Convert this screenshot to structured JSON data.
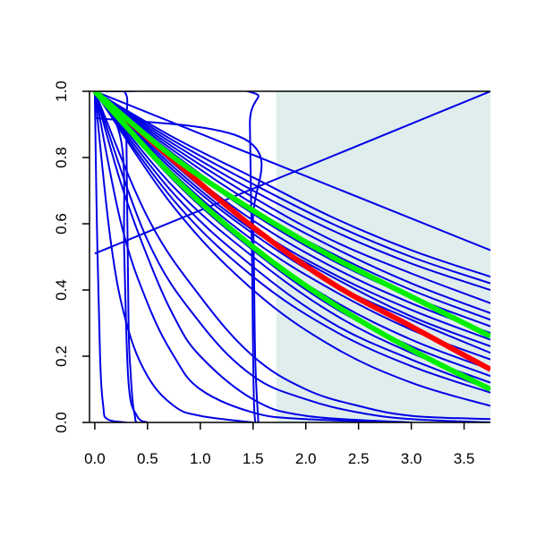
{
  "chart_data": {
    "type": "line",
    "title": "",
    "xlabel": "",
    "ylabel": "",
    "xlim": [
      -0.05,
      3.75
    ],
    "ylim": [
      0.0,
      1.0
    ],
    "x_ticks": [
      "0.0",
      "0.5",
      "1.0",
      "1.5",
      "2.0",
      "2.5",
      "3.0",
      "3.5"
    ],
    "y_ticks": [
      "0.0",
      "0.2",
      "0.4",
      "0.6",
      "0.8",
      "1.0"
    ],
    "grid": false,
    "legend": "none",
    "shaded_region": {
      "x_from": 1.72,
      "x_to": 3.75,
      "color": "#e0eded"
    },
    "colors": {
      "background_curves": "#0000e6",
      "highlight_red": "#ff0000",
      "highlight_green": "#00ee00"
    },
    "series": [
      {
        "color": "#0000e6",
        "x": [
          0,
          3.75
        ],
        "y": [
          1.0,
          0.52
        ]
      },
      {
        "color": "#0000e6",
        "x": [
          0,
          3.75
        ],
        "y": [
          0.51,
          1.0
        ]
      },
      {
        "color": "#0000e6",
        "x": [
          0,
          0.75,
          1.5,
          2.25,
          3.0,
          3.75
        ],
        "y": [
          1.0,
          0.86,
          0.74,
          0.62,
          0.52,
          0.44
        ]
      },
      {
        "color": "#0000e6",
        "x": [
          0,
          0.75,
          1.5,
          2.25,
          3.0,
          3.75
        ],
        "y": [
          1.0,
          0.85,
          0.72,
          0.6,
          0.5,
          0.42
        ]
      },
      {
        "color": "#0000e6",
        "x": [
          0,
          0.75,
          1.5,
          2.25,
          3.0,
          3.75
        ],
        "y": [
          1.0,
          0.84,
          0.7,
          0.58,
          0.48,
          0.4
        ]
      },
      {
        "color": "#0000e6",
        "x": [
          0,
          0.75,
          1.5,
          2.25,
          3.0,
          3.75
        ],
        "y": [
          1.0,
          0.83,
          0.68,
          0.55,
          0.45,
          0.36
        ]
      },
      {
        "color": "#0000e6",
        "x": [
          0,
          0.75,
          1.5,
          2.25,
          3.0,
          3.75
        ],
        "y": [
          1.0,
          0.82,
          0.66,
          0.53,
          0.42,
          0.33
        ]
      },
      {
        "color": "#0000e6",
        "x": [
          0,
          0.75,
          1.5,
          2.25,
          3.0,
          3.75
        ],
        "y": [
          1.0,
          0.81,
          0.64,
          0.51,
          0.4,
          0.31
        ]
      },
      {
        "color": "#0000e6",
        "x": [
          0,
          0.75,
          1.5,
          2.25,
          3.0,
          3.75
        ],
        "y": [
          1.0,
          0.8,
          0.63,
          0.49,
          0.38,
          0.29
        ]
      },
      {
        "color": "#0000e6",
        "x": [
          0,
          0.75,
          1.5,
          2.25,
          3.0,
          3.75
        ],
        "y": [
          1.0,
          0.79,
          0.61,
          0.47,
          0.36,
          0.27
        ]
      },
      {
        "color": "#0000e6",
        "x": [
          0,
          0.75,
          1.5,
          2.25,
          3.0,
          3.75
        ],
        "y": [
          1.0,
          0.78,
          0.59,
          0.45,
          0.34,
          0.25
        ]
      },
      {
        "color": "#0000e6",
        "x": [
          0,
          0.75,
          1.5,
          2.25,
          3.0,
          3.75
        ],
        "y": [
          1.0,
          0.77,
          0.58,
          0.44,
          0.32,
          0.23
        ]
      },
      {
        "color": "#0000e6",
        "x": [
          0,
          0.75,
          1.5,
          2.25,
          3.0,
          3.75
        ],
        "y": [
          1.0,
          0.76,
          0.57,
          0.42,
          0.31,
          0.21
        ]
      },
      {
        "color": "#0000e6",
        "x": [
          0,
          0.75,
          1.5,
          2.25,
          3.0,
          3.75
        ],
        "y": [
          1.0,
          0.75,
          0.55,
          0.4,
          0.28,
          0.19
        ]
      },
      {
        "color": "#0000e6",
        "x": [
          0,
          0.75,
          1.5,
          2.25,
          3.0,
          3.75
        ],
        "y": [
          1.0,
          0.74,
          0.53,
          0.37,
          0.25,
          0.16
        ]
      },
      {
        "color": "#0000e6",
        "x": [
          0,
          0.75,
          1.5,
          2.25,
          3.0,
          3.75
        ],
        "y": [
          1.0,
          0.73,
          0.52,
          0.35,
          0.23,
          0.14
        ]
      },
      {
        "color": "#0000e6",
        "x": [
          0,
          0.75,
          1.5,
          2.25,
          3.0,
          3.75
        ],
        "y": [
          1.0,
          0.71,
          0.5,
          0.33,
          0.21,
          0.12
        ]
      },
      {
        "color": "#0000e6",
        "x": [
          0,
          0.75,
          1.5,
          2.25,
          3.0,
          3.75
        ],
        "y": [
          1.0,
          0.69,
          0.47,
          0.3,
          0.19,
          0.1
        ]
      },
      {
        "color": "#0000e6",
        "x": [
          0,
          0.75,
          1.5,
          2.25,
          3.0,
          3.75
        ],
        "y": [
          1.0,
          0.67,
          0.44,
          0.28,
          0.17,
          0.09
        ]
      },
      {
        "color": "#0000e6",
        "x": [
          0,
          0.75,
          1.5,
          2.25,
          3.0,
          3.75
        ],
        "y": [
          1.0,
          0.65,
          0.4,
          0.23,
          0.12,
          0.05
        ]
      },
      {
        "color": "#0000e6",
        "x": [
          0,
          0.5,
          1.0,
          1.5,
          2.0,
          2.5,
          3.0,
          3.75
        ],
        "y": [
          1.0,
          0.62,
          0.38,
          0.2,
          0.1,
          0.05,
          0.02,
          0.01
        ]
      },
      {
        "color": "#0000e6",
        "x": [
          0,
          0.5,
          1.0,
          1.5,
          2.0,
          2.5,
          3.0,
          3.75
        ],
        "y": [
          1.0,
          0.55,
          0.3,
          0.14,
          0.07,
          0.03,
          0.01,
          0.0
        ]
      },
      {
        "color": "#0000e6",
        "x": [
          0,
          0.25,
          0.5,
          0.75,
          1.0,
          1.5,
          2.0,
          3.0
        ],
        "y": [
          1.0,
          0.72,
          0.5,
          0.32,
          0.2,
          0.07,
          0.02,
          0.0
        ]
      },
      {
        "color": "#0000e6",
        "x": [
          0,
          0.25,
          0.5,
          0.75,
          1.0,
          1.5,
          2.0,
          3.0
        ],
        "y": [
          1.0,
          0.6,
          0.36,
          0.2,
          0.1,
          0.03,
          0.01,
          0.0
        ]
      },
      {
        "color": "#0000e6",
        "x": [
          0,
          0.15,
          0.3,
          0.5,
          0.75,
          1.0,
          1.5
        ],
        "y": [
          1.0,
          0.55,
          0.3,
          0.14,
          0.05,
          0.02,
          0.0
        ]
      },
      {
        "color": "#0000e6",
        "x": [
          0,
          0.02,
          0.05,
          0.08,
          0.12,
          0.3
        ],
        "y": [
          1.0,
          0.6,
          0.2,
          0.05,
          0.01,
          0.0
        ]
      },
      {
        "color": "#0000e6",
        "x": [
          0,
          0.28,
          0.3,
          0.32,
          0.34,
          0.36,
          0.38,
          0.4,
          0.5
        ],
        "y": [
          1.0,
          1.0,
          0.85,
          0.3,
          0.15,
          0.06,
          0.02,
          0.0,
          0.0
        ]
      },
      {
        "color": "#0000e6",
        "x": [
          0,
          0.25,
          0.28,
          0.32,
          0.4,
          0.5
        ],
        "y": [
          1.0,
          0.85,
          0.5,
          0.12,
          0.02,
          0.0
        ]
      },
      {
        "color": "#0000e6",
        "x": [
          0,
          0.25,
          1.45,
          1.47,
          1.49,
          1.51,
          1.55
        ],
        "y": [
          1.0,
          1.0,
          1.0,
          0.9,
          0.5,
          0.05,
          0.0
        ]
      },
      {
        "color": "#0000e6",
        "x": [
          0,
          1.45,
          1.5,
          1.52,
          1.55
        ],
        "y": [
          0.92,
          0.85,
          0.6,
          0.2,
          0.0
        ]
      },
      {
        "color": "#ff0000",
        "highlight": true,
        "x": [
          0.25,
          0.75,
          1.5,
          2.25,
          3.0,
          3.75
        ],
        "y": [
          0.93,
          0.79,
          0.59,
          0.42,
          0.29,
          0.16
        ]
      },
      {
        "color": "#00ee00",
        "highlight": true,
        "x": [
          0.0,
          0.75,
          1.5,
          2.25,
          3.0,
          3.75
        ],
        "y": [
          1.0,
          0.8,
          0.64,
          0.5,
          0.38,
          0.26
        ]
      },
      {
        "color": "#00ee00",
        "highlight": true,
        "x": [
          0.0,
          0.75,
          1.5,
          2.25,
          3.0,
          3.75
        ],
        "y": [
          1.0,
          0.74,
          0.53,
          0.36,
          0.22,
          0.1
        ]
      }
    ]
  }
}
